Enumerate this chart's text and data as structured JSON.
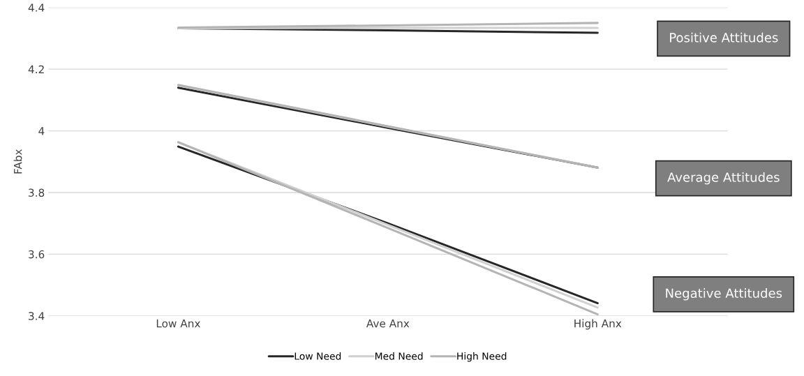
{
  "chart_data": {
    "type": "line",
    "ylabel": "FAbx",
    "categories": [
      "Low Anx",
      "Ave Anx",
      "High Anx"
    ],
    "series": [
      {
        "name": "Low Need",
        "color": "#262626",
        "values": [
          4.333,
          4.326,
          4.318
        ]
      },
      {
        "name": "Med Need",
        "color": "#d0d0d0",
        "values": [
          4.333,
          4.334,
          4.334
        ]
      },
      {
        "name": "High Need",
        "color": "#b4b4b4",
        "values": [
          4.335,
          4.342,
          4.35
        ]
      },
      {
        "color": "#262626",
        "values": [
          4.14,
          4.01,
          3.881
        ]
      },
      {
        "color": "#d0d0d0",
        "values": [
          4.147,
          4.014,
          3.881
        ]
      },
      {
        "color": "#b4b4b4",
        "values": [
          4.149,
          4.015,
          3.881
        ]
      },
      {
        "color": "#262626",
        "values": [
          3.949,
          3.7,
          3.441
        ]
      },
      {
        "color": "#d0d0d0",
        "values": [
          3.963,
          3.695,
          3.427
        ]
      },
      {
        "color": "#b4b4b4",
        "values": [
          3.963,
          3.685,
          3.405
        ]
      }
    ],
    "annotations": [
      "Positive Attitudes",
      "Average Attitudes",
      "Negative Attitudes"
    ],
    "ylim": [
      3.4,
      4.4
    ],
    "yticks": [
      3.4,
      3.6,
      3.8,
      4,
      4.2,
      4.4
    ],
    "grid": "y",
    "legend": "bottom",
    "marker": "none",
    "line_style": "solid"
  }
}
